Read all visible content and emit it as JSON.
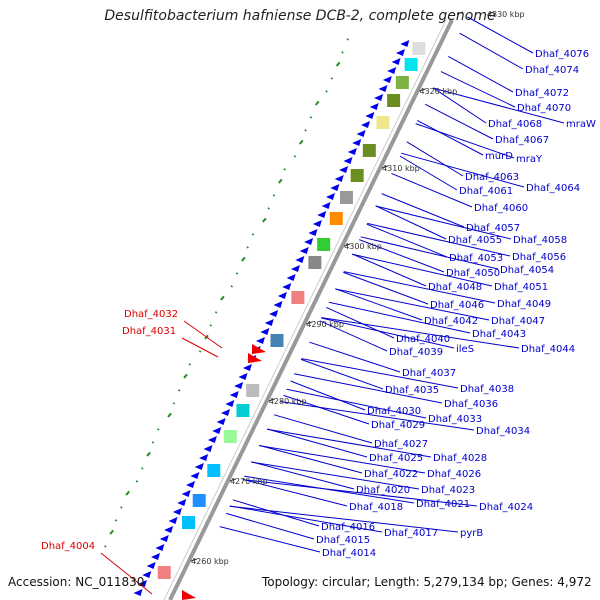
{
  "title": "Desulfitobacterium hafniense DCB-2, complete genome",
  "footer": {
    "accession": "Accession: NC_011830",
    "summary": "Topology: circular; Length: 5,279,134 bp; Genes: 4,972"
  },
  "colors": {
    "forward_label": "#0000cc",
    "reverse_label": "#dd0000",
    "forward_gene": "#0000ee",
    "reverse_gene": "#ee0000",
    "backbone": "#888888",
    "gc_tick": "#228b22"
  },
  "kbp_ticks": [
    "4330 kbp",
    "4320 kbp",
    "4310 kbp",
    "4300 kbp",
    "4290 kbp",
    "4280 kbp",
    "4270 kbp",
    "4260 kbp"
  ],
  "forward_genes": [
    "Dhaf_4076",
    "Dhaf_4074",
    "Dhaf_4072",
    "Dhaf_4070",
    "Dhaf_4068",
    "mraW",
    "Dhaf_4067",
    "murD",
    "mraY",
    "Dhaf_4063",
    "Dhaf_4061",
    "Dhaf_4064",
    "Dhaf_4060",
    "Dhaf_4057",
    "Dhaf_4055",
    "Dhaf_4058",
    "Dhaf_4053",
    "Dhaf_4056",
    "Dhaf_4050",
    "Dhaf_4054",
    "Dhaf_4048",
    "Dhaf_4051",
    "Dhaf_4046",
    "Dhaf_4049",
    "Dhaf_4042",
    "Dhaf_4047",
    "Dhaf_4043",
    "Dhaf_4040",
    "Dhaf_4044",
    "Dhaf_4039",
    "ileS",
    "Dhaf_4037",
    "Dhaf_4035",
    "Dhaf_4038",
    "Dhaf_4036",
    "Dhaf_4030",
    "Dhaf_4033",
    "Dhaf_4029",
    "Dhaf_4034",
    "Dhaf_4027",
    "Dhaf_4025",
    "Dhaf_4028",
    "Dhaf_4022",
    "Dhaf_4026",
    "Dhaf_4020",
    "Dhaf_4023",
    "Dhaf_4021",
    "Dhaf_4018",
    "Dhaf_4024",
    "Dhaf_4016",
    "Dhaf_4017",
    "pyrB",
    "Dhaf_4015",
    "Dhaf_4014"
  ],
  "reverse_genes": [
    "Dhaf_4032",
    "Dhaf_4031",
    "Dhaf_4004"
  ]
}
